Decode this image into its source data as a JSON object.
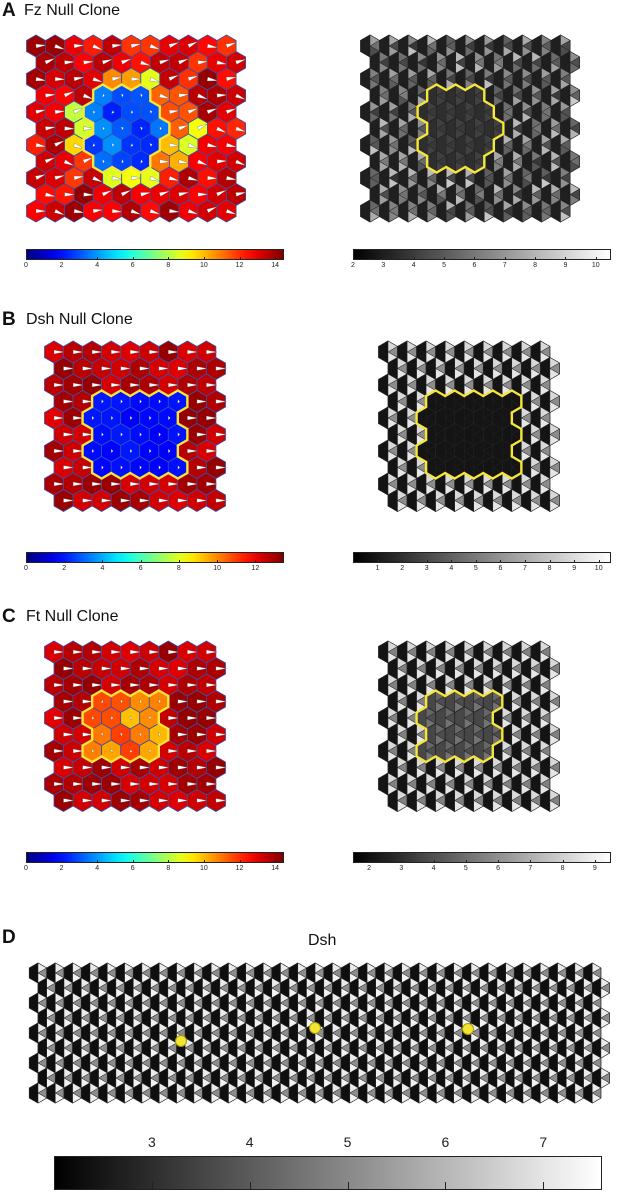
{
  "panels": {
    "A": {
      "letter": "A",
      "title": "Fz Null Clone"
    },
    "B": {
      "letter": "B",
      "title": "Dsh Null Clone"
    },
    "C": {
      "letter": "C",
      "title": "Ft Null Clone"
    },
    "D": {
      "letter": "D",
      "title": "Dsh"
    }
  },
  "colors": {
    "clone_outline": "#f5e63a",
    "hex_border": "#3b4fa8",
    "arrow": "#ffffff",
    "mutant_cell": "#2a3fb0",
    "wildtype_cell": "#b3121c",
    "dot": "#f2e534"
  },
  "colorbars": {
    "A_left": {
      "colormap": "jet",
      "ticks": [
        "0",
        "2",
        "4",
        "6",
        "8",
        "10",
        "12",
        "14"
      ],
      "range": [
        0,
        14.5
      ]
    },
    "A_right": {
      "colormap": "gray",
      "ticks": [
        "2",
        "3",
        "4",
        "5",
        "6",
        "7",
        "8",
        "9",
        "10"
      ],
      "range": [
        2,
        10.5
      ]
    },
    "B_left": {
      "colormap": "jet",
      "ticks": [
        "0",
        "2",
        "4",
        "6",
        "8",
        "10",
        "12"
      ],
      "range": [
        0,
        13.5
      ]
    },
    "B_right": {
      "colormap": "gray",
      "ticks": [
        "1",
        "2",
        "3",
        "4",
        "5",
        "6",
        "7",
        "8",
        "9",
        "10"
      ],
      "range": [
        0,
        10.5
      ]
    },
    "C_left": {
      "colormap": "jet",
      "ticks": [
        "0",
        "2",
        "4",
        "6",
        "8",
        "10",
        "12",
        "14"
      ],
      "range": [
        0,
        14.5
      ]
    },
    "C_right": {
      "colormap": "gray",
      "ticks": [
        "2",
        "3",
        "4",
        "5",
        "6",
        "7",
        "8",
        "9"
      ],
      "range": [
        1.5,
        9.5
      ]
    },
    "D": {
      "colormap": "gray",
      "ticks": [
        "3",
        "4",
        "5",
        "6",
        "7"
      ],
      "range": [
        2,
        7.6
      ]
    }
  }
}
